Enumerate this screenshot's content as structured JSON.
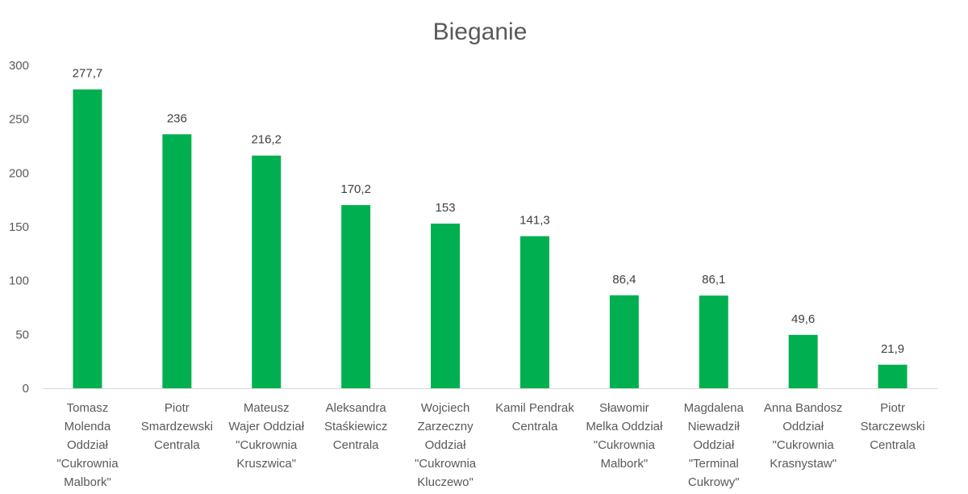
{
  "chart_data": {
    "type": "bar",
    "title": "Bieganie",
    "xlabel": "",
    "ylabel": "",
    "ylim": [
      0,
      300
    ],
    "yticks": [
      0,
      50,
      100,
      150,
      200,
      250,
      300
    ],
    "grid": false,
    "legend": "none",
    "bar_color": "#00b050",
    "categories": [
      "Tomasz Molenda Oddział \"Cukrownia Malbork\"",
      "Piotr Smardzewski Centrala",
      "Mateusz Wajer Oddział \"Cukrownia Kruszwica\"",
      "Aleksandra Staśkiewicz Centrala",
      "Wojciech Zarzeczny Oddział \"Cukrownia Kluczewo\"",
      "Kamil Pendrak Centrala",
      "Sławomir Melka Oddział \"Cukrownia Malbork\"",
      "Magdalena Niewadził Oddział \"Terminal Cukrowy\"",
      "Anna Bandosz Oddział \"Cukrownia Krasnystaw\"",
      "Piotr Starczewski Centrala"
    ],
    "category_lines": [
      [
        "Tomasz",
        "Molenda",
        "Oddział",
        "\"Cukrownia",
        "Malbork\""
      ],
      [
        "Piotr",
        "Smardzewski",
        "Centrala"
      ],
      [
        "Mateusz",
        "Wajer Oddział",
        "\"Cukrownia",
        "Kruszwica\""
      ],
      [
        "Aleksandra",
        "Staśkiewicz",
        "Centrala"
      ],
      [
        "Wojciech",
        "Zarzeczny",
        "Oddział",
        "\"Cukrownia",
        "Kluczewo\""
      ],
      [
        "Kamil Pendrak",
        "Centrala"
      ],
      [
        "Sławomir",
        "Melka Oddział",
        "\"Cukrownia",
        "Malbork\""
      ],
      [
        "Magdalena",
        "Niewadził",
        "Oddział",
        "\"Terminal",
        "Cukrowy\""
      ],
      [
        "Anna Bandosz",
        "Oddział",
        "\"Cukrownia",
        "Krasnystaw\""
      ],
      [
        "Piotr",
        "Starczewski",
        "Centrala"
      ]
    ],
    "values": [
      277.7,
      236,
      216.2,
      170.2,
      153,
      141.3,
      86.4,
      86.1,
      49.6,
      21.9
    ],
    "value_labels": [
      "277,7",
      "236",
      "216,2",
      "170,2",
      "153",
      "141,3",
      "86,4",
      "86,1",
      "49,6",
      "21,9"
    ]
  }
}
